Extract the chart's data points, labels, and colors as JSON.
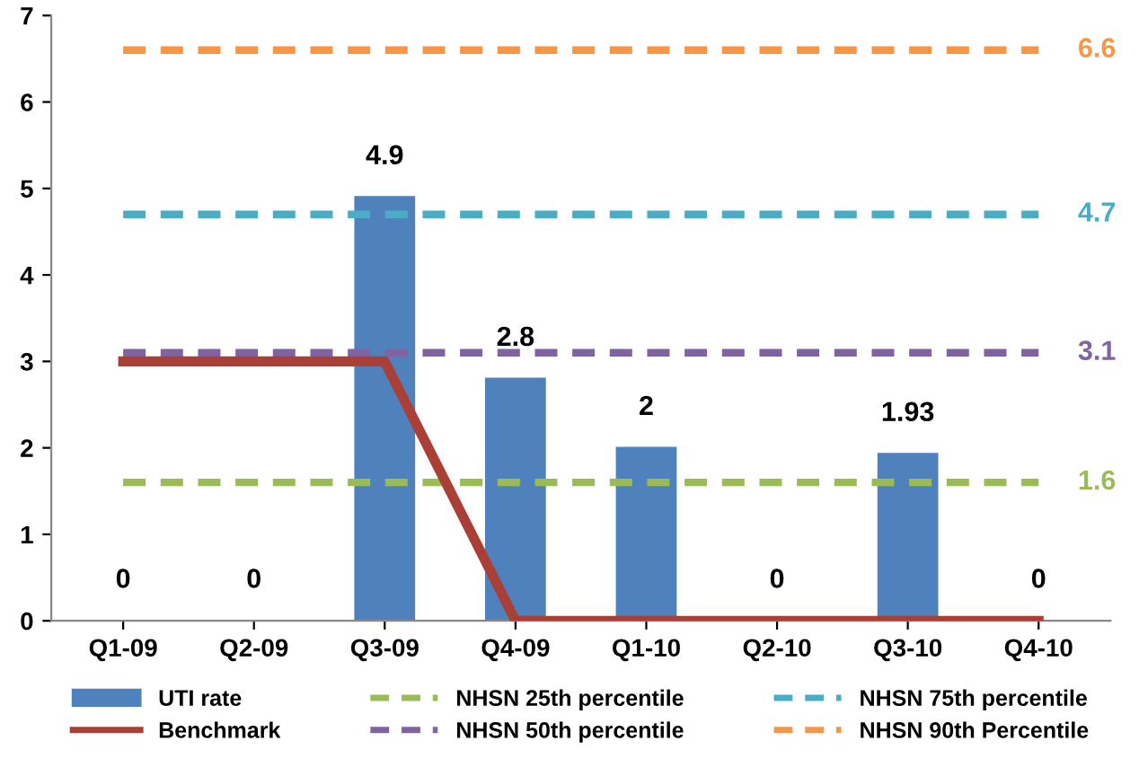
{
  "chart_data": {
    "type": "bar",
    "categories": [
      "Q1-09",
      "Q2-09",
      "Q3-09",
      "Q4-09",
      "Q1-10",
      "Q2-10",
      "Q3-10",
      "Q4-10"
    ],
    "series": [
      {
        "name": "UTI rate",
        "color": "#4f81bd",
        "values": [
          0,
          0,
          4.9,
          2.8,
          2,
          0,
          1.93,
          0
        ],
        "value_labels": [
          "0",
          "0",
          "4.9",
          "2.8",
          "2",
          "0",
          "1.93",
          "0"
        ]
      },
      {
        "name": "Benchmark",
        "type": "line",
        "color": "#a93f36",
        "line_style": "solid",
        "values": [
          3,
          3,
          3,
          0,
          0,
          0,
          0,
          0
        ]
      },
      {
        "name": "NHSN 25th percentile",
        "type": "line",
        "color": "#9bbb59",
        "line_style": "dashed",
        "values": [
          1.6,
          1.6,
          1.6,
          1.6,
          1.6,
          1.6,
          1.6,
          1.6
        ],
        "value_labels": [
          null,
          null,
          null,
          null,
          null,
          null,
          null,
          "1.6"
        ]
      },
      {
        "name": "NHSN 50th percentile",
        "type": "line",
        "color": "#8064a2",
        "line_style": "dashed",
        "values": [
          3.1,
          3.1,
          3.1,
          3.1,
          3.1,
          3.1,
          3.1,
          3.1
        ],
        "value_labels": [
          null,
          null,
          null,
          null,
          null,
          null,
          null,
          "3.1"
        ]
      },
      {
        "name": "NHSN 75th percentile",
        "type": "line",
        "color": "#4bacc6",
        "line_style": "dashed",
        "values": [
          4.7,
          4.7,
          4.7,
          4.7,
          4.7,
          4.7,
          4.7,
          4.7
        ],
        "value_labels": [
          null,
          null,
          null,
          null,
          null,
          null,
          null,
          "4.7"
        ]
      },
      {
        "name": "NHSN 90th Percentile",
        "type": "line",
        "color": "#f79646",
        "line_style": "dashed",
        "values": [
          6.6,
          6.6,
          6.6,
          6.6,
          6.6,
          6.6,
          6.6,
          6.6
        ],
        "value_labels": [
          null,
          null,
          null,
          null,
          null,
          null,
          null,
          "6.6"
        ]
      }
    ],
    "ylim": [
      0,
      7
    ],
    "yticks": [
      0,
      1,
      2,
      3,
      4,
      5,
      6,
      7
    ],
    "grid": false,
    "legend": "bottom",
    "marker": "none"
  }
}
